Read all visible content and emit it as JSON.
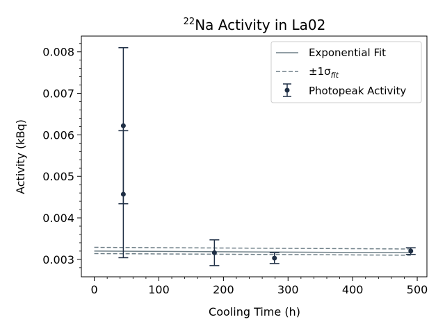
{
  "chart_data": {
    "type": "scatter",
    "title": {
      "superscript": "22",
      "text": "Na Activity in La02"
    },
    "xlabel": "Cooling Time (h)",
    "ylabel": "Activity (kBq)",
    "xlim": [
      -20,
      515
    ],
    "ylim": [
      0.00258,
      0.00838
    ],
    "x_ticks": [
      0,
      100,
      200,
      300,
      400,
      500
    ],
    "x_tick_labels": [
      "0",
      "100",
      "200",
      "300",
      "400",
      "500"
    ],
    "y_ticks": [
      0.003,
      0.004,
      0.005,
      0.006,
      0.007,
      0.008
    ],
    "y_tick_labels": [
      "0.003",
      "0.004",
      "0.005",
      "0.006",
      "0.007",
      "0.008"
    ],
    "grid": false,
    "legend_position": "top-right",
    "colors": {
      "fit": "#6e7f87",
      "data": "#1f2f45"
    },
    "series": [
      {
        "name": "Photopeak Activity",
        "kind": "errorbar",
        "points": [
          {
            "x": 45,
            "y": 0.00622,
            "yerr": 0.00188
          },
          {
            "x": 45,
            "y": 0.00457,
            "yerr": 0.00153
          },
          {
            "x": 186,
            "y": 0.00316,
            "yerr": 0.00031
          },
          {
            "x": 279,
            "y": 0.00303,
            "yerr": 0.00013
          },
          {
            "x": 490,
            "y": 0.0032,
            "yerr": 8e-05
          }
        ]
      },
      {
        "name": "Exponential Fit",
        "kind": "line",
        "x": [
          0,
          490
        ],
        "y": [
          0.0032,
          0.00316
        ]
      },
      {
        "name": "Fit +1 sigma",
        "kind": "dashed",
        "x": [
          0,
          490
        ],
        "y": [
          0.00329,
          0.00325
        ]
      },
      {
        "name": "Fit -1 sigma",
        "kind": "dashed",
        "x": [
          0,
          490
        ],
        "y": [
          0.00314,
          0.0031
        ]
      }
    ],
    "legend": [
      {
        "label": "Exponential Fit",
        "style": "line"
      },
      {
        "label": "±1σ",
        "subscript": "fit",
        "style": "dashed"
      },
      {
        "label": "Photopeak Activity",
        "style": "errorbar"
      }
    ]
  }
}
